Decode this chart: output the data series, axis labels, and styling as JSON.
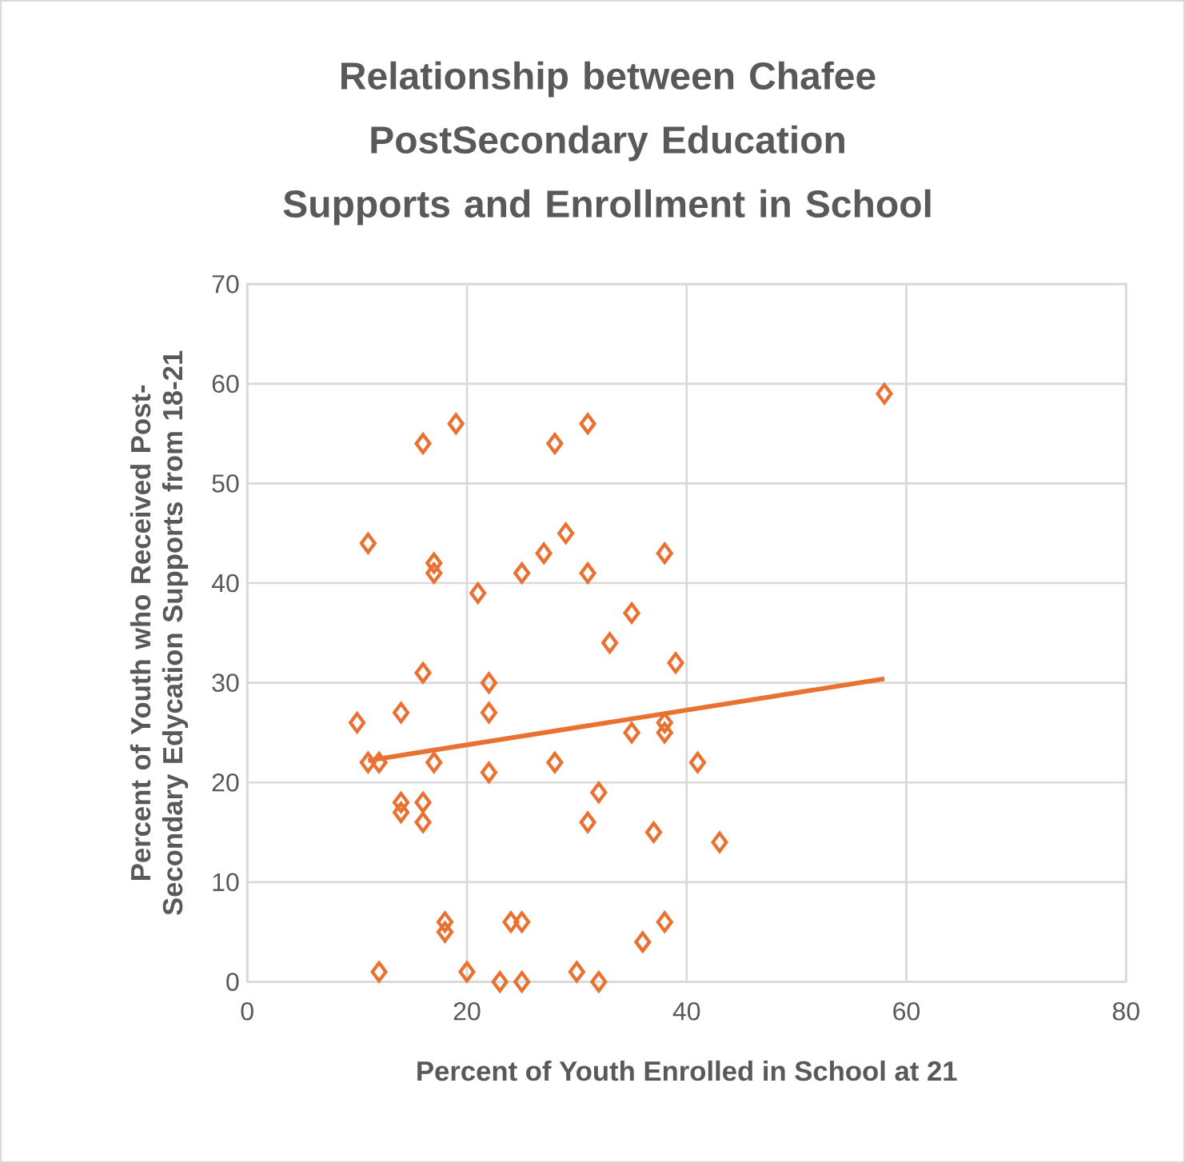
{
  "chart_data": {
    "type": "scatter",
    "title": "Relationship between Chafee PostSecondary Education Supports and Enrollment in School",
    "xlabel": "Percent of Youth Enrolled in School at 21",
    "ylabel": "Percent of Youth who Received Post-Secondary Edycation Supports from 18-21",
    "xlim": [
      0,
      80
    ],
    "ylim": [
      0,
      70
    ],
    "xticks": [
      0,
      20,
      40,
      60,
      80
    ],
    "yticks": [
      0,
      10,
      20,
      30,
      40,
      50,
      60,
      70
    ],
    "grid": true,
    "marker": "diamond",
    "series": [
      {
        "color": "#e97132",
        "x": [
          16,
          19,
          28,
          31,
          58,
          11,
          17,
          17,
          21,
          25,
          27,
          29,
          31,
          38,
          35,
          33,
          39,
          16,
          22,
          10,
          14,
          22,
          11,
          12,
          17,
          22,
          28,
          35,
          38,
          38,
          41,
          14,
          16,
          14,
          16,
          32,
          31,
          37,
          43,
          18,
          18,
          24,
          25,
          38,
          36,
          12,
          20,
          23,
          25,
          30,
          32
        ],
        "values": [
          54,
          56,
          54,
          56,
          59,
          44,
          42,
          41,
          39,
          41,
          43,
          45,
          41,
          43,
          37,
          34,
          32,
          31,
          30,
          26,
          27,
          27,
          22,
          22,
          22,
          21,
          22,
          25,
          25,
          26,
          22,
          18,
          18,
          17,
          16,
          19,
          16,
          15,
          14,
          6,
          5,
          6,
          6,
          6,
          4,
          1,
          1,
          0,
          0,
          1,
          0
        ]
      },
      {
        "type": "line",
        "marker": "none",
        "color": "#e97132",
        "x": [
          11,
          58
        ],
        "values": [
          22.2,
          30.4
        ]
      }
    ]
  }
}
